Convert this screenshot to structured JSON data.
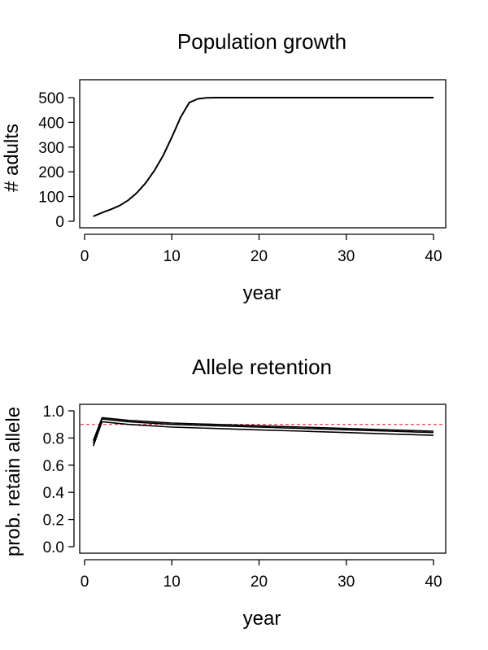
{
  "chart_data": [
    {
      "type": "line",
      "title": "Population growth",
      "xlabel": "year",
      "ylabel": "# adults",
      "xlim": [
        0,
        40
      ],
      "ylim": [
        0,
        500
      ],
      "xticks": [
        "0",
        "10",
        "20",
        "30",
        "40"
      ],
      "yticks": [
        "0",
        "100",
        "200",
        "300",
        "400",
        "500"
      ],
      "grid": false,
      "series": [
        {
          "color": "#000000",
          "x": [
            1,
            2,
            3,
            4,
            5,
            6,
            7,
            8,
            9,
            10,
            11,
            12,
            13,
            14,
            15,
            16,
            17,
            18,
            19,
            20,
            21,
            22,
            23,
            24,
            25,
            26,
            27,
            28,
            29,
            30,
            31,
            32,
            33,
            34,
            35,
            36,
            37,
            38,
            39,
            40
          ],
          "values": [
            20,
            35,
            48,
            63,
            85,
            115,
            155,
            205,
            265,
            340,
            420,
            480,
            495,
            499,
            500,
            500,
            500,
            500,
            500,
            500,
            500,
            500,
            500,
            500,
            500,
            500,
            500,
            500,
            500,
            500,
            500,
            500,
            500,
            500,
            500,
            500,
            500,
            500,
            500,
            500
          ]
        }
      ]
    },
    {
      "type": "line",
      "title": "Allele retention",
      "xlabel": "year",
      "ylabel": "prob. retain allele",
      "xlim": [
        0,
        40
      ],
      "ylim": [
        0,
        1
      ],
      "xticks": [
        "0",
        "10",
        "20",
        "30",
        "40"
      ],
      "yticks": [
        "0.0",
        "0.2",
        "0.4",
        "0.6",
        "0.8",
        "1.0"
      ],
      "grid": false,
      "reference_line": {
        "y": 0.9,
        "color": "#e8303a",
        "style": "dashed"
      },
      "series": [
        {
          "color": "#000000",
          "x": [
            1,
            2,
            5,
            10,
            15,
            20,
            25,
            30,
            35,
            40
          ],
          "values": [
            0.78,
            0.95,
            0.93,
            0.91,
            0.9,
            0.89,
            0.88,
            0.87,
            0.86,
            0.85
          ]
        },
        {
          "color": "#000000",
          "x": [
            1,
            2,
            5,
            10,
            15,
            20,
            25,
            30,
            35,
            40
          ],
          "values": [
            0.76,
            0.94,
            0.92,
            0.9,
            0.89,
            0.88,
            0.87,
            0.86,
            0.85,
            0.84
          ]
        },
        {
          "color": "#000000",
          "x": [
            1,
            2,
            5,
            10,
            15,
            20,
            25,
            30,
            35,
            40
          ],
          "values": [
            0.74,
            0.92,
            0.9,
            0.88,
            0.87,
            0.86,
            0.85,
            0.84,
            0.83,
            0.82
          ]
        }
      ]
    }
  ]
}
